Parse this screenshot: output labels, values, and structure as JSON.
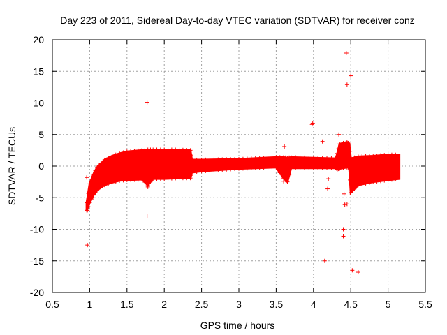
{
  "chart_data": {
    "type": "scatter",
    "title": "Day 223 of 2011, Sidereal Day-to-day VTEC variation (SDTVAR) for receiver conz",
    "xlabel": "GPS time / hours",
    "ylabel": "SDTVAR / TECUs",
    "xlim": [
      0.5,
      5.5
    ],
    "ylim": [
      -20,
      20
    ],
    "xticks": [
      "0.5",
      "1",
      "1.5",
      "2",
      "2.5",
      "3",
      "3.5",
      "4",
      "4.5",
      "5",
      "5.5"
    ],
    "xtick_values": [
      0.5,
      1,
      1.5,
      2,
      2.5,
      3,
      3.5,
      4,
      4.5,
      5,
      5.5
    ],
    "yticks": [
      "20",
      "15",
      "10",
      "5",
      "0",
      "-5",
      "-10",
      "-15",
      "-20"
    ],
    "ytick_values": [
      20,
      15,
      10,
      5,
      0,
      -5,
      -10,
      -15,
      -20
    ],
    "grid": true,
    "marker": "+",
    "color": "#ff0000",
    "dense_band": [
      {
        "x": 0.96,
        "low": -7.0,
        "high": -5.8
      },
      {
        "x": 1.0,
        "low": -5.8,
        "high": -2.8
      },
      {
        "x": 1.05,
        "low": -4.6,
        "high": -1.3
      },
      {
        "x": 1.1,
        "low": -3.8,
        "high": -0.2
      },
      {
        "x": 1.2,
        "low": -3.0,
        "high": 1.0
      },
      {
        "x": 1.3,
        "low": -2.6,
        "high": 1.6
      },
      {
        "x": 1.4,
        "low": -2.3,
        "high": 2.0
      },
      {
        "x": 1.5,
        "low": -2.2,
        "high": 2.3
      },
      {
        "x": 1.7,
        "low": -2.1,
        "high": 2.5
      },
      {
        "x": 1.78,
        "low": -3.0,
        "high": 2.6
      },
      {
        "x": 1.85,
        "low": -2.0,
        "high": 2.6
      },
      {
        "x": 2.0,
        "low": -2.0,
        "high": 2.6
      },
      {
        "x": 2.2,
        "low": -1.9,
        "high": 2.6
      },
      {
        "x": 2.35,
        "low": -1.9,
        "high": 2.5
      },
      {
        "x": 2.37,
        "low": -1.0,
        "high": 1.0
      },
      {
        "x": 2.5,
        "low": -0.8,
        "high": 1.0
      },
      {
        "x": 3.0,
        "low": -0.4,
        "high": 1.1
      },
      {
        "x": 3.5,
        "low": -0.2,
        "high": 1.4
      },
      {
        "x": 3.6,
        "low": -1.9,
        "high": 1.4
      },
      {
        "x": 3.65,
        "low": -2.5,
        "high": 1.3
      },
      {
        "x": 3.7,
        "low": -0.3,
        "high": 1.4
      },
      {
        "x": 4.0,
        "low": -0.3,
        "high": 1.3
      },
      {
        "x": 4.3,
        "low": -0.3,
        "high": 1.2
      },
      {
        "x": 4.32,
        "low": -0.5,
        "high": 2.0
      },
      {
        "x": 4.35,
        "low": -0.4,
        "high": 3.5
      },
      {
        "x": 4.45,
        "low": -0.2,
        "high": 3.8
      },
      {
        "x": 4.48,
        "low": -0.2,
        "high": 3.5
      },
      {
        "x": 4.5,
        "low": -4.2,
        "high": 1.2
      },
      {
        "x": 4.6,
        "low": -3.0,
        "high": 1.5
      },
      {
        "x": 4.8,
        "low": -2.5,
        "high": 1.6
      },
      {
        "x": 5.0,
        "low": -2.2,
        "high": 1.8
      },
      {
        "x": 5.15,
        "low": -2.0,
        "high": 1.8
      }
    ],
    "outliers": [
      {
        "x": 0.96,
        "y": -1.8
      },
      {
        "x": 0.97,
        "y": -12.5
      },
      {
        "x": 0.97,
        "y": -7.0
      },
      {
        "x": 1.77,
        "y": 10.1
      },
      {
        "x": 1.77,
        "y": -7.9
      },
      {
        "x": 1.78,
        "y": -3.3
      },
      {
        "x": 3.61,
        "y": 3.1
      },
      {
        "x": 3.6,
        "y": -2.4
      },
      {
        "x": 3.98,
        "y": 6.6
      },
      {
        "x": 3.99,
        "y": 6.8
      },
      {
        "x": 4.12,
        "y": 3.9
      },
      {
        "x": 4.15,
        "y": -15.0
      },
      {
        "x": 4.19,
        "y": -3.6
      },
      {
        "x": 4.2,
        "y": -2.0
      },
      {
        "x": 4.34,
        "y": 5.0
      },
      {
        "x": 4.4,
        "y": -10.0
      },
      {
        "x": 4.4,
        "y": -11.1
      },
      {
        "x": 4.41,
        "y": -4.4
      },
      {
        "x": 4.42,
        "y": -6.1
      },
      {
        "x": 4.45,
        "y": -6.0
      },
      {
        "x": 4.44,
        "y": 17.9
      },
      {
        "x": 4.45,
        "y": 12.9
      },
      {
        "x": 4.5,
        "y": 14.3
      },
      {
        "x": 4.52,
        "y": -16.5
      },
      {
        "x": 4.6,
        "y": -16.8
      }
    ]
  }
}
